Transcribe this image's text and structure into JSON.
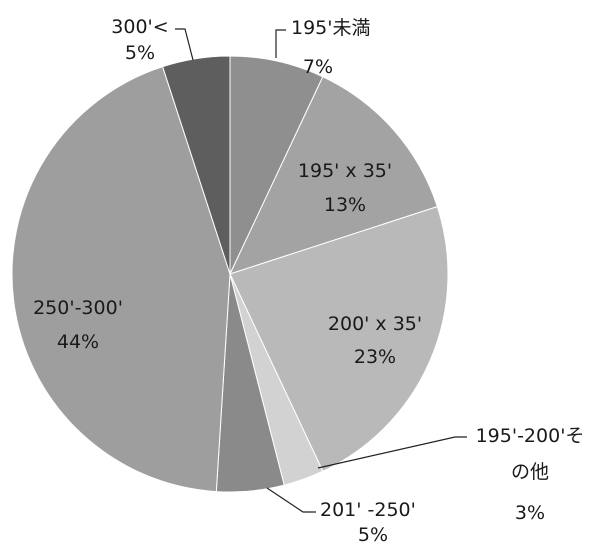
{
  "chart_data": {
    "type": "pie",
    "slices": [
      {
        "label": "195'未満",
        "value": 7,
        "percent_label": "7%",
        "color": "#8f8f8f"
      },
      {
        "label": "195' x 35'",
        "value": 13,
        "percent_label": "13%",
        "color": "#a3a3a3"
      },
      {
        "label": "200' x 35'",
        "value": 23,
        "percent_label": "23%",
        "color": "#b9b9b9"
      },
      {
        "label_lines": [
          "195'-200'そ",
          "の他"
        ],
        "value": 3,
        "percent_label": "3%",
        "color": "#d2d2d2"
      },
      {
        "label": "201' -250'",
        "value": 5,
        "percent_label": "5%",
        "color": "#8a8a8a"
      },
      {
        "label": "250'-300'",
        "value": 44,
        "percent_label": "44%",
        "color": "#9e9e9e"
      },
      {
        "label": "300'<",
        "value": 5,
        "percent_label": "5%",
        "color": "#5e5e5e"
      }
    ]
  }
}
